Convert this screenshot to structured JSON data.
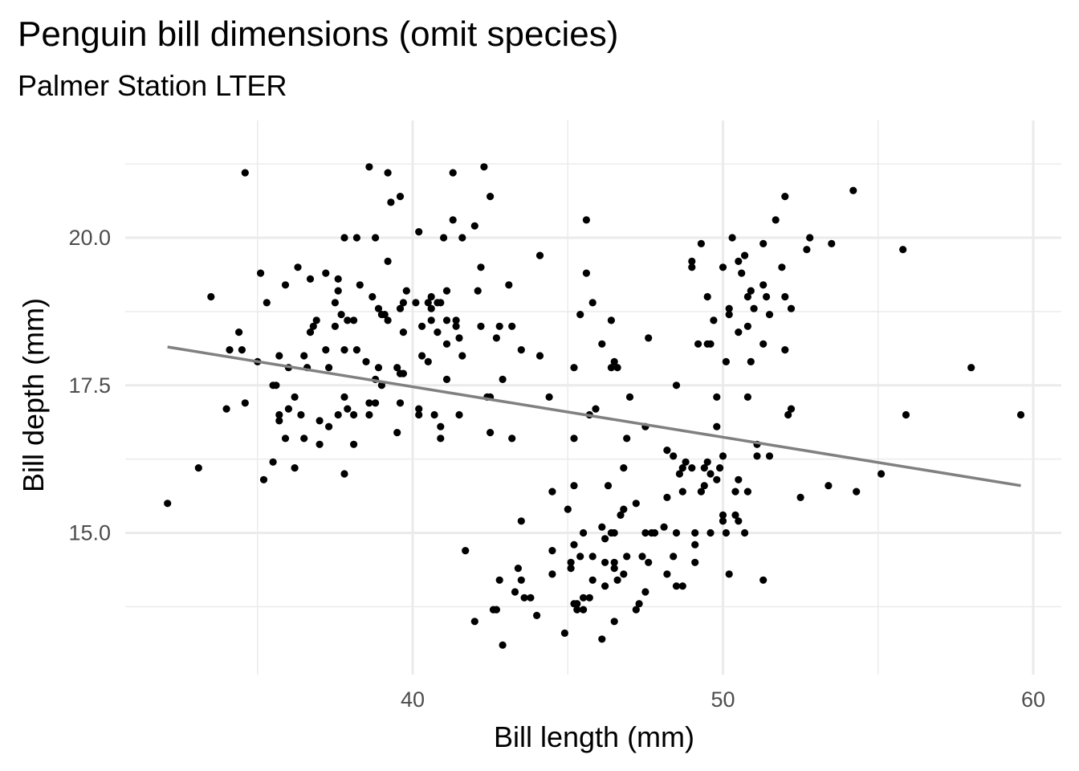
{
  "chart_data": {
    "type": "scatter",
    "title": "Penguin bill dimensions (omit species)",
    "subtitle": "Palmer Station LTER",
    "xlabel": "Bill length (mm)",
    "ylabel": "Bill depth (mm)",
    "xlim": [
      31.5,
      61
    ],
    "ylim": [
      12.8,
      21.8
    ],
    "x_ticks": [
      40,
      50,
      60
    ],
    "x_tick_labels": [
      "40",
      "50",
      "60"
    ],
    "y_ticks": [
      15,
      17.5,
      20
    ],
    "y_tick_labels": [
      "15.0",
      "17.5",
      "20.0"
    ],
    "grid": true,
    "legend": "none",
    "point_color": "#000000",
    "trend_color": "#808080",
    "trend_line": {
      "x": [
        32.1,
        59.6
      ],
      "y": [
        18.15,
        15.8
      ]
    },
    "points": [
      [
        32.1,
        15.5
      ],
      [
        33.1,
        16.1
      ],
      [
        33.5,
        19.0
      ],
      [
        34.0,
        17.1
      ],
      [
        34.1,
        18.1
      ],
      [
        34.4,
        18.4
      ],
      [
        34.5,
        18.1
      ],
      [
        34.6,
        21.1
      ],
      [
        34.6,
        17.2
      ],
      [
        35.0,
        17.9
      ],
      [
        35.1,
        19.4
      ],
      [
        35.2,
        15.9
      ],
      [
        35.3,
        18.9
      ],
      [
        35.5,
        16.2
      ],
      [
        35.5,
        17.5
      ],
      [
        35.6,
        17.5
      ],
      [
        35.7,
        16.9
      ],
      [
        35.7,
        17.0
      ],
      [
        35.7,
        18.0
      ],
      [
        35.9,
        19.2
      ],
      [
        35.9,
        16.6
      ],
      [
        36.0,
        17.8
      ],
      [
        36.0,
        17.1
      ],
      [
        36.2,
        17.3
      ],
      [
        36.2,
        16.1
      ],
      [
        36.3,
        19.5
      ],
      [
        36.4,
        17.0
      ],
      [
        36.5,
        18.0
      ],
      [
        36.5,
        16.6
      ],
      [
        36.6,
        17.8
      ],
      [
        36.7,
        18.4
      ],
      [
        36.7,
        19.3
      ],
      [
        36.8,
        18.5
      ],
      [
        36.9,
        18.6
      ],
      [
        37.0,
        16.9
      ],
      [
        37.0,
        16.5
      ],
      [
        37.2,
        18.1
      ],
      [
        37.2,
        19.4
      ],
      [
        37.3,
        16.8
      ],
      [
        37.3,
        17.8
      ],
      [
        37.5,
        18.9
      ],
      [
        37.5,
        18.5
      ],
      [
        37.6,
        17.0
      ],
      [
        37.6,
        19.1
      ],
      [
        37.6,
        19.3
      ],
      [
        37.7,
        18.7
      ],
      [
        37.8,
        17.3
      ],
      [
        37.8,
        18.1
      ],
      [
        37.8,
        20.0
      ],
      [
        37.8,
        16.0
      ],
      [
        37.9,
        18.6
      ],
      [
        37.9,
        17.1
      ],
      [
        38.1,
        18.6
      ],
      [
        38.1,
        16.5
      ],
      [
        38.1,
        17.0
      ],
      [
        38.2,
        18.1
      ],
      [
        38.2,
        20.0
      ],
      [
        38.3,
        19.2
      ],
      [
        38.5,
        17.9
      ],
      [
        38.6,
        21.2
      ],
      [
        38.6,
        17.2
      ],
      [
        38.6,
        17.0
      ],
      [
        38.7,
        19.0
      ],
      [
        38.8,
        20.0
      ],
      [
        38.8,
        17.2
      ],
      [
        38.8,
        17.6
      ],
      [
        38.9,
        17.8
      ],
      [
        38.9,
        18.8
      ],
      [
        39.0,
        17.5
      ],
      [
        39.0,
        18.7
      ],
      [
        39.1,
        18.7
      ],
      [
        39.2,
        19.6
      ],
      [
        39.2,
        21.1
      ],
      [
        39.2,
        18.6
      ],
      [
        39.3,
        20.6
      ],
      [
        39.5,
        16.7
      ],
      [
        39.5,
        17.8
      ],
      [
        39.6,
        17.7
      ],
      [
        39.6,
        18.8
      ],
      [
        39.6,
        20.7
      ],
      [
        39.6,
        17.2
      ],
      [
        39.7,
        18.4
      ],
      [
        39.7,
        17.7
      ],
      [
        39.7,
        18.9
      ],
      [
        39.8,
        19.1
      ],
      [
        40.1,
        18.9
      ],
      [
        40.2,
        20.1
      ],
      [
        40.2,
        17.0
      ],
      [
        40.2,
        17.1
      ],
      [
        40.3,
        18.0
      ],
      [
        40.3,
        18.5
      ],
      [
        40.5,
        17.9
      ],
      [
        40.5,
        18.9
      ],
      [
        40.6,
        18.6
      ],
      [
        40.6,
        18.8
      ],
      [
        40.6,
        19.0
      ],
      [
        40.7,
        17.0
      ],
      [
        40.8,
        18.4
      ],
      [
        40.8,
        18.9
      ],
      [
        40.9,
        16.8
      ],
      [
        40.9,
        16.6
      ],
      [
        40.9,
        18.9
      ],
      [
        41.0,
        20.0
      ],
      [
        41.1,
        17.6
      ],
      [
        41.1,
        18.2
      ],
      [
        41.1,
        19.1
      ],
      [
        41.1,
        18.6
      ],
      [
        41.3,
        20.3
      ],
      [
        41.3,
        21.1
      ],
      [
        41.4,
        18.6
      ],
      [
        41.4,
        18.5
      ],
      [
        41.5,
        17.0
      ],
      [
        41.5,
        18.3
      ],
      [
        41.6,
        18.0
      ],
      [
        41.6,
        20.0
      ],
      [
        41.7,
        14.7
      ],
      [
        42.0,
        13.5
      ],
      [
        42.0,
        20.2
      ],
      [
        42.1,
        19.1
      ],
      [
        42.2,
        18.5
      ],
      [
        42.2,
        19.5
      ],
      [
        42.3,
        21.2
      ],
      [
        42.4,
        17.3
      ],
      [
        42.5,
        16.7
      ],
      [
        42.5,
        17.3
      ],
      [
        42.5,
        20.7
      ],
      [
        42.6,
        13.7
      ],
      [
        42.7,
        13.7
      ],
      [
        42.7,
        18.3
      ],
      [
        42.8,
        14.2
      ],
      [
        42.8,
        18.5
      ],
      [
        42.9,
        13.1
      ],
      [
        42.9,
        17.6
      ],
      [
        43.1,
        19.2
      ],
      [
        43.2,
        18.5
      ],
      [
        43.2,
        16.6
      ],
      [
        43.3,
        14.0
      ],
      [
        43.4,
        14.4
      ],
      [
        43.5,
        14.2
      ],
      [
        43.5,
        18.1
      ],
      [
        43.5,
        15.2
      ],
      [
        43.6,
        13.9
      ],
      [
        43.8,
        13.9
      ],
      [
        44.0,
        13.6
      ],
      [
        44.1,
        18.0
      ],
      [
        44.1,
        19.7
      ],
      [
        44.4,
        17.3
      ],
      [
        44.5,
        14.3
      ],
      [
        44.5,
        15.7
      ],
      [
        44.5,
        14.7
      ],
      [
        44.9,
        13.3
      ],
      [
        45.0,
        15.4
      ],
      [
        45.1,
        14.5
      ],
      [
        45.1,
        14.4
      ],
      [
        45.2,
        13.8
      ],
      [
        45.2,
        14.8
      ],
      [
        45.2,
        15.8
      ],
      [
        45.2,
        16.6
      ],
      [
        45.2,
        17.8
      ],
      [
        45.3,
        13.8
      ],
      [
        45.3,
        13.7
      ],
      [
        45.4,
        14.6
      ],
      [
        45.4,
        18.7
      ],
      [
        45.5,
        13.9
      ],
      [
        45.5,
        13.7
      ],
      [
        45.5,
        15.0
      ],
      [
        45.6,
        20.3
      ],
      [
        45.6,
        19.4
      ],
      [
        45.7,
        13.9
      ],
      [
        45.7,
        17.0
      ],
      [
        45.8,
        14.6
      ],
      [
        45.8,
        14.2
      ],
      [
        45.8,
        18.9
      ],
      [
        45.9,
        17.1
      ],
      [
        46.1,
        13.2
      ],
      [
        46.1,
        15.1
      ],
      [
        46.1,
        18.2
      ],
      [
        46.2,
        14.1
      ],
      [
        46.2,
        14.5
      ],
      [
        46.2,
        14.9
      ],
      [
        46.3,
        15.8
      ],
      [
        46.4,
        15.0
      ],
      [
        46.4,
        17.8
      ],
      [
        46.4,
        18.6
      ],
      [
        46.5,
        13.5
      ],
      [
        46.5,
        14.5
      ],
      [
        46.5,
        14.4
      ],
      [
        46.5,
        15.0
      ],
      [
        46.5,
        17.9
      ],
      [
        46.6,
        14.2
      ],
      [
        46.6,
        17.8
      ],
      [
        46.7,
        15.3
      ],
      [
        46.8,
        14.3
      ],
      [
        46.8,
        15.4
      ],
      [
        46.8,
        16.1
      ],
      [
        46.9,
        14.6
      ],
      [
        46.9,
        16.6
      ],
      [
        47.0,
        17.3
      ],
      [
        47.2,
        13.7
      ],
      [
        47.2,
        15.5
      ],
      [
        47.3,
        13.8
      ],
      [
        47.4,
        14.6
      ],
      [
        47.5,
        14.0
      ],
      [
        47.5,
        15.0
      ],
      [
        47.5,
        16.8
      ],
      [
        47.6,
        14.5
      ],
      [
        47.6,
        18.3
      ],
      [
        47.7,
        15.0
      ],
      [
        47.8,
        15.0
      ],
      [
        48.1,
        15.1
      ],
      [
        48.2,
        14.3
      ],
      [
        48.2,
        15.6
      ],
      [
        48.2,
        16.4
      ],
      [
        48.4,
        14.6
      ],
      [
        48.4,
        16.3
      ],
      [
        48.5,
        14.1
      ],
      [
        48.5,
        15.0
      ],
      [
        48.5,
        17.5
      ],
      [
        48.6,
        16.0
      ],
      [
        48.7,
        14.1
      ],
      [
        48.7,
        15.7
      ],
      [
        48.7,
        16.1
      ],
      [
        48.8,
        16.2
      ],
      [
        49.0,
        16.1
      ],
      [
        49.0,
        19.5
      ],
      [
        49.0,
        19.6
      ],
      [
        49.1,
        14.5
      ],
      [
        49.1,
        14.8
      ],
      [
        49.1,
        15.0
      ],
      [
        49.2,
        18.2
      ],
      [
        49.3,
        15.7
      ],
      [
        49.3,
        19.9
      ],
      [
        49.4,
        15.8
      ],
      [
        49.4,
        16.1
      ],
      [
        49.5,
        16.2
      ],
      [
        49.5,
        19.0
      ],
      [
        49.5,
        18.2
      ],
      [
        49.6,
        15.0
      ],
      [
        49.6,
        16.0
      ],
      [
        49.6,
        18.2
      ],
      [
        49.7,
        18.6
      ],
      [
        49.8,
        15.9
      ],
      [
        49.8,
        16.8
      ],
      [
        49.8,
        17.3
      ],
      [
        49.9,
        16.1
      ],
      [
        50.0,
        15.2
      ],
      [
        50.0,
        15.3
      ],
      [
        50.0,
        16.3
      ],
      [
        50.0,
        19.5
      ],
      [
        50.1,
        15.0
      ],
      [
        50.1,
        17.9
      ],
      [
        50.2,
        14.3
      ],
      [
        50.2,
        18.7
      ],
      [
        50.2,
        18.8
      ],
      [
        50.3,
        20.0
      ],
      [
        50.4,
        15.3
      ],
      [
        50.4,
        15.7
      ],
      [
        50.5,
        15.2
      ],
      [
        50.5,
        15.9
      ],
      [
        50.5,
        18.4
      ],
      [
        50.5,
        19.6
      ],
      [
        50.6,
        19.4
      ],
      [
        50.7,
        15.0
      ],
      [
        50.7,
        19.7
      ],
      [
        50.8,
        15.7
      ],
      [
        50.8,
        17.3
      ],
      [
        50.8,
        18.5
      ],
      [
        50.8,
        19.0
      ],
      [
        50.9,
        17.9
      ],
      [
        50.9,
        19.1
      ],
      [
        51.0,
        18.8
      ],
      [
        51.1,
        16.5
      ],
      [
        51.1,
        16.3
      ],
      [
        51.3,
        14.2
      ],
      [
        51.3,
        18.2
      ],
      [
        51.3,
        19.2
      ],
      [
        51.3,
        19.9
      ],
      [
        51.4,
        19.0
      ],
      [
        51.5,
        16.3
      ],
      [
        51.5,
        18.7
      ],
      [
        51.7,
        20.3
      ],
      [
        51.9,
        19.5
      ],
      [
        52.0,
        18.1
      ],
      [
        52.0,
        19.0
      ],
      [
        52.0,
        20.7
      ],
      [
        52.1,
        17.0
      ],
      [
        52.2,
        17.1
      ],
      [
        52.2,
        18.8
      ],
      [
        52.5,
        15.6
      ],
      [
        52.7,
        19.8
      ],
      [
        52.8,
        20.0
      ],
      [
        53.4,
        15.8
      ],
      [
        53.5,
        19.9
      ],
      [
        54.2,
        20.8
      ],
      [
        54.3,
        15.7
      ],
      [
        55.1,
        16.0
      ],
      [
        55.8,
        19.8
      ],
      [
        55.9,
        17.0
      ],
      [
        58.0,
        17.8
      ],
      [
        59.6,
        17.0
      ]
    ]
  }
}
